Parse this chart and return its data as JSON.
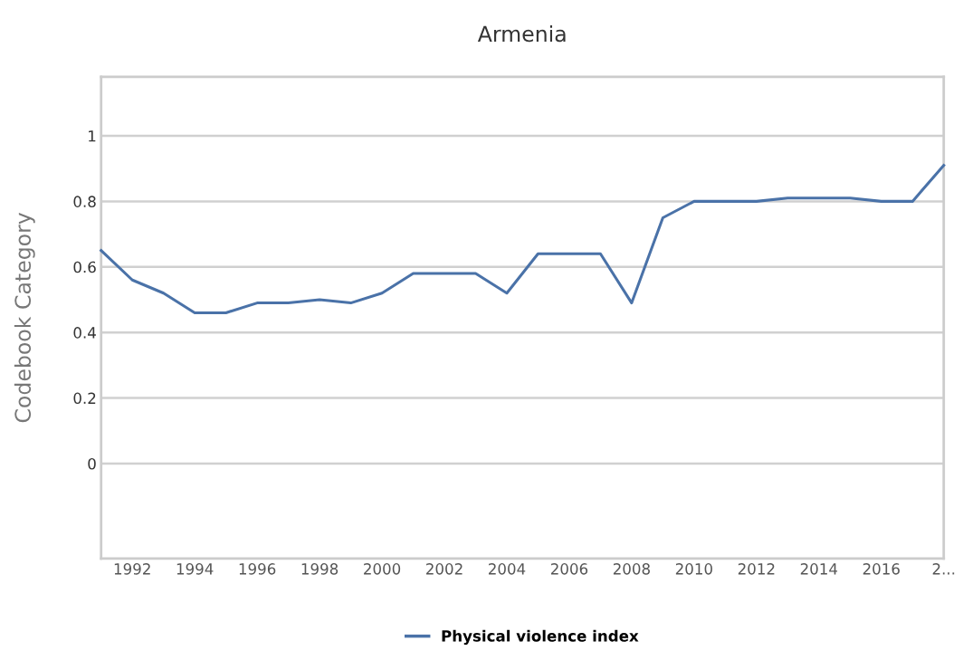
{
  "chart_data": {
    "type": "line",
    "title": "Armenia",
    "ylabel": "Codebook Category",
    "x": [
      1991,
      1992,
      1993,
      1994,
      1995,
      1996,
      1997,
      1998,
      1999,
      2000,
      2001,
      2002,
      2003,
      2004,
      2005,
      2006,
      2007,
      2008,
      2009,
      2010,
      2011,
      2012,
      2013,
      2014,
      2015,
      2016,
      2017,
      2018
    ],
    "series": [
      {
        "name": "Physical violence index",
        "color": "#4a72a8",
        "values": [
          0.65,
          0.56,
          0.52,
          0.46,
          0.46,
          0.49,
          0.49,
          0.5,
          0.49,
          0.52,
          0.58,
          0.58,
          0.58,
          0.52,
          0.64,
          0.64,
          0.64,
          0.49,
          0.75,
          0.8,
          0.8,
          0.8,
          0.81,
          0.81,
          0.81,
          0.8,
          0.8,
          0.91
        ]
      }
    ],
    "xlim": [
      1991,
      2018
    ],
    "xticks": [
      1992,
      1994,
      1996,
      1998,
      2000,
      2002,
      2004,
      2006,
      2008,
      2010,
      2012,
      2014,
      2016,
      {
        "value": 2018,
        "label": "2..."
      }
    ],
    "ylim": [
      -0.29,
      1.18
    ],
    "yticks": [
      0,
      0.2,
      0.4,
      0.6,
      0.8,
      1
    ],
    "grid": "y",
    "legend": "bottom",
    "marker": "none",
    "line_style": "solid"
  }
}
